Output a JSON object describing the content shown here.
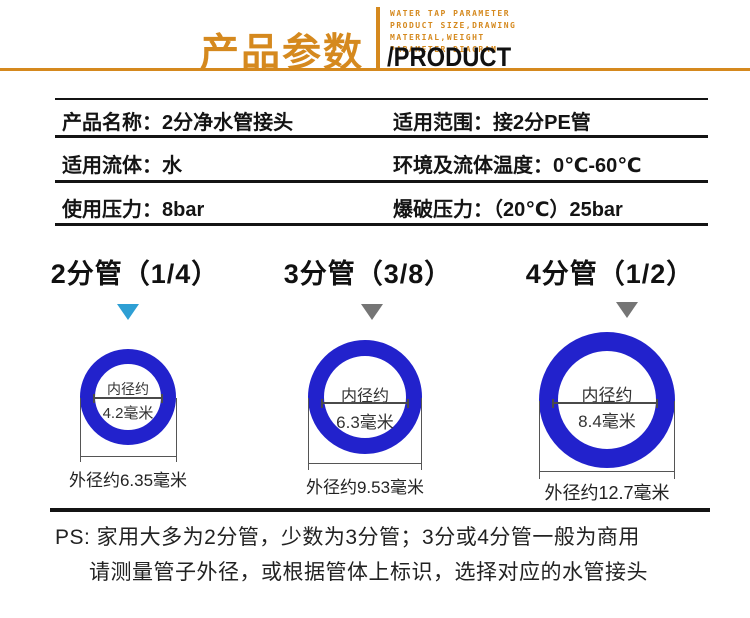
{
  "colors": {
    "accent_orange": "#d5891e",
    "ring_blue": "#2222cc",
    "pointer_blue": "#2e9fd4",
    "pointer_gray": "#757575",
    "line_black": "#141414"
  },
  "header": {
    "title": "产品参数",
    "tagline_lines": [
      "WATER TAP PARAMETER",
      "PRODUCT SIZE,DRAWING",
      "MATERIAL,WEIGHT",
      "PARAMETER DIAGRAM"
    ],
    "subtitle": "/PRODUCT"
  },
  "spec_table": {
    "rows": [
      {
        "left_label": "产品名称：",
        "left_value": "2分净水管接头",
        "right_label": "适用范围：",
        "right_value": "接2分PE管"
      },
      {
        "left_label": "适用流体：",
        "left_value": "水",
        "right_label": "环境及流体温度：",
        "right_value": "0℃-60℃"
      },
      {
        "left_label": "使用压力：",
        "left_value": "8bar",
        "right_label": "爆破压力：",
        "right_value": "（20℃）25bar"
      }
    ]
  },
  "pipes": [
    {
      "title": "2分管（1/4）",
      "pointer_color": "#2e9fd4",
      "inner_label": "内径约",
      "inner_value": "4.2毫米",
      "outer_label": "外径约6.35毫米"
    },
    {
      "title": "3分管（3/8）",
      "pointer_color": "#757575",
      "inner_label": "内径约",
      "inner_value": "6.3毫米",
      "outer_label": "外径约9.53毫米"
    },
    {
      "title": "4分管（1/2）",
      "pointer_color": "#757575",
      "inner_label": "内径约",
      "inner_value": "8.4毫米",
      "outer_label": "外径约12.7毫米"
    }
  ],
  "note": {
    "line1": "PS: 家用大多为2分管，少数为3分管；3分或4分管一般为商用",
    "line2": "请测量管子外径，或根据管体上标识，选择对应的水管接头"
  }
}
